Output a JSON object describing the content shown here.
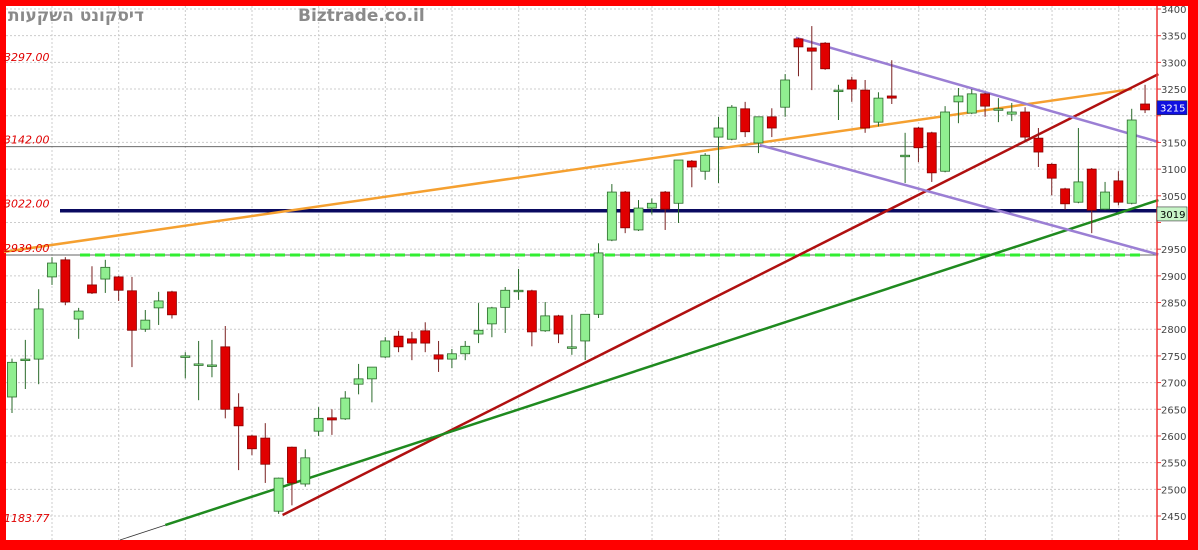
{
  "header": {
    "broker": "דיסקונט השקעות",
    "site": "Biztrade.co.il"
  },
  "colors": {
    "frame": "#ff0000",
    "up": "#90ee90",
    "down": "#e00000",
    "orange_line": "#f5a030",
    "dark_red_line": "#b01010",
    "green_line": "#1f8a1f",
    "purple_line": "#9b7fd4",
    "navy_line": "#0a0a60",
    "dashed_support": "#33ee33",
    "last_price_badge": "#1010e0",
    "level_badge": "#c8f5c8"
  },
  "chart_data": {
    "type": "candlestick",
    "title": "",
    "ylim": [
      2430,
      3400
    ],
    "y_ticks": [
      3400,
      3350,
      3300,
      3250,
      3200,
      3150,
      3100,
      3050,
      3000,
      2950,
      2900,
      2850,
      2800,
      2750,
      2700,
      2650,
      2600,
      2550,
      2500,
      2450
    ],
    "y_tick_labels_hidden_by_badge": [
      3200,
      3000
    ],
    "grid": true,
    "candles": [
      [
        2673,
        2745,
        2643,
        2738
      ],
      [
        2744,
        2780,
        2688,
        2744
      ],
      [
        2744,
        2875,
        2697,
        2838
      ],
      [
        2898,
        2935,
        2883,
        2924
      ],
      [
        2930,
        2935,
        2845,
        2851
      ],
      [
        2819,
        2840,
        2782,
        2834
      ],
      [
        2883,
        2918,
        2866,
        2868
      ],
      [
        2894,
        2930,
        2868,
        2916
      ],
      [
        2898,
        2900,
        2853,
        2873
      ],
      [
        2872,
        2898,
        2729,
        2798
      ],
      [
        2800,
        2836,
        2795,
        2817
      ],
      [
        2840,
        2870,
        2808,
        2853
      ],
      [
        2870,
        2872,
        2820,
        2827
      ],
      [
        2750,
        2757,
        2708,
        2750
      ],
      [
        2735,
        2778,
        2667,
        2735
      ],
      [
        2733,
        2780,
        2710,
        2733
      ],
      [
        2767,
        2806,
        2633,
        2650
      ],
      [
        2654,
        2680,
        2536,
        2619
      ],
      [
        2600,
        2602,
        2564,
        2576
      ],
      [
        2596,
        2624,
        2512,
        2547
      ],
      [
        2459,
        2522,
        2454,
        2521
      ],
      [
        2579,
        2580,
        2470,
        2512
      ],
      [
        2510,
        2575,
        2505,
        2559
      ],
      [
        2609,
        2654,
        2600,
        2633
      ],
      [
        2634,
        2650,
        2602,
        2630
      ],
      [
        2632,
        2684,
        2630,
        2671
      ],
      [
        2697,
        2735,
        2678,
        2707
      ],
      [
        2707,
        2729,
        2663,
        2729
      ],
      [
        2748,
        2785,
        2746,
        2778
      ],
      [
        2787,
        2797,
        2757,
        2767
      ],
      [
        2782,
        2795,
        2742,
        2774
      ],
      [
        2797,
        2813,
        2757,
        2774
      ],
      [
        2752,
        2778,
        2720,
        2744
      ],
      [
        2744,
        2763,
        2727,
        2754
      ],
      [
        2754,
        2778,
        2742,
        2768
      ],
      [
        2791,
        2849,
        2774,
        2798
      ],
      [
        2810,
        2842,
        2785,
        2840
      ],
      [
        2841,
        2879,
        2793,
        2873
      ],
      [
        2873,
        2913,
        2855,
        2873
      ],
      [
        2872,
        2874,
        2768,
        2795
      ],
      [
        2797,
        2851,
        2795,
        2825
      ],
      [
        2825,
        2827,
        2774,
        2791
      ],
      [
        2767,
        2827,
        2752,
        2767
      ],
      [
        2778,
        2828,
        2742,
        2828
      ],
      [
        2828,
        2961,
        2821,
        2943
      ],
      [
        2967,
        3072,
        2965,
        3057
      ],
      [
        3057,
        3059,
        2980,
        2990
      ],
      [
        2986,
        3042,
        2984,
        3027
      ],
      [
        3027,
        3045,
        3015,
        3036
      ],
      [
        3057,
        3059,
        2986,
        3025
      ],
      [
        3036,
        3117,
        2999,
        3117
      ],
      [
        3115,
        3117,
        3066,
        3104
      ],
      [
        3096,
        3130,
        3080,
        3126
      ],
      [
        3160,
        3198,
        3074,
        3177
      ],
      [
        3156,
        3220,
        3154,
        3216
      ],
      [
        3213,
        3226,
        3160,
        3170
      ],
      [
        3149,
        3198,
        3130,
        3198
      ],
      [
        3198,
        3214,
        3160,
        3177
      ],
      [
        3216,
        3278,
        3198,
        3267
      ],
      [
        3344,
        3346,
        3274,
        3329
      ],
      [
        3327,
        3368,
        3248,
        3321
      ],
      [
        3336,
        3338,
        3286,
        3288
      ],
      [
        3248,
        3258,
        3192,
        3248
      ],
      [
        3267,
        3273,
        3226,
        3250
      ],
      [
        3248,
        3267,
        3168,
        3177
      ],
      [
        3188,
        3244,
        3180,
        3233
      ],
      [
        3237,
        3304,
        3222,
        3233
      ],
      [
        3126,
        3168,
        3074,
        3126
      ],
      [
        3177,
        3179,
        3113,
        3140
      ],
      [
        3168,
        3170,
        3076,
        3093
      ],
      [
        3096,
        3218,
        3094,
        3207
      ],
      [
        3226,
        3252,
        3186,
        3237
      ],
      [
        3205,
        3250,
        3203,
        3241
      ],
      [
        3241,
        3243,
        3198,
        3218
      ],
      [
        3213,
        3233,
        3188,
        3213
      ],
      [
        3203,
        3224,
        3190,
        3207
      ],
      [
        3207,
        3216,
        3151,
        3160
      ],
      [
        3158,
        3177,
        3104,
        3132
      ],
      [
        3109,
        3111,
        3051,
        3083
      ],
      [
        3063,
        3065,
        3024,
        3035
      ],
      [
        3038,
        3177,
        3036,
        3076
      ],
      [
        3100,
        3102,
        2980,
        3023
      ],
      [
        3025,
        3076,
        3023,
        3057
      ],
      [
        3078,
        3096,
        3032,
        3038
      ],
      [
        3036,
        3213,
        3034,
        3192
      ],
      [
        3222,
        3258,
        3205,
        3211
      ]
    ],
    "candle_format": [
      "open",
      "high",
      "low",
      "close"
    ],
    "level_labels": [
      {
        "text": "3297.00",
        "price": 3297
      },
      {
        "text": "3142.00",
        "price": 3142
      },
      {
        "text": "3022.00",
        "price": 3022
      },
      {
        "text": "2939.00",
        "price": 2939
      },
      {
        "text": "1183.77",
        "price": 2433
      }
    ],
    "horizontal_lines": [
      {
        "kind": "thin",
        "price": 3142,
        "color": "#555555"
      },
      {
        "kind": "thick",
        "price": 3022,
        "color": "#0a0a60"
      },
      {
        "kind": "thin",
        "price": 2939,
        "color": "#333333"
      },
      {
        "kind": "dashed",
        "price": 2939,
        "color": "#33ee33"
      }
    ],
    "trend_lines": [
      {
        "color": "#f5a030",
        "from": [
          -0.6,
          2945
        ],
        "to": [
          84,
          3250
        ]
      },
      {
        "color": "#b01010",
        "from": [
          20.3,
          2452
        ],
        "to": [
          86,
          3278
        ]
      },
      {
        "color": "#1f8a1f",
        "from": [
          11.5,
          2433
        ],
        "to": [
          86,
          3042
        ]
      },
      {
        "color": "#9b7fd4",
        "from": [
          58.8,
          3346
        ],
        "to": [
          86,
          3151
        ]
      },
      {
        "color": "#9b7fd4",
        "from": [
          56.1,
          3145
        ],
        "to": [
          86,
          2940
        ]
      }
    ],
    "badges": [
      {
        "text": "3215",
        "price": 3215,
        "bg": "#1010e0",
        "fg": "#ffffff"
      },
      {
        "text": "3019",
        "price": 3016,
        "bg": "#c8f5c8",
        "fg": "#000000"
      }
    ]
  }
}
